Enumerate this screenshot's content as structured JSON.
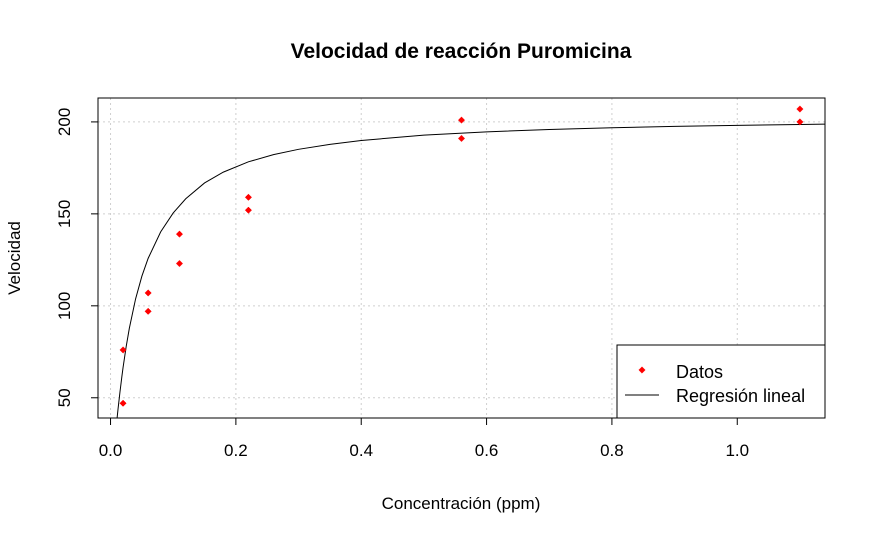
{
  "chart_data": {
    "type": "scatter",
    "title": "Velocidad de reacción Puromicina",
    "xlabel": "Concentración (ppm)",
    "ylabel": "Velocidad",
    "xlim": [
      -0.02,
      1.14
    ],
    "ylim": [
      39,
      213
    ],
    "x_ticks": [
      0.0,
      0.2,
      0.4,
      0.6,
      0.8,
      1.0
    ],
    "x_tick_labels": [
      "0.0",
      "0.2",
      "0.4",
      "0.6",
      "0.8",
      "1.0"
    ],
    "y_ticks": [
      50,
      100,
      150,
      200
    ],
    "y_tick_labels": [
      "50",
      "100",
      "150",
      "200"
    ],
    "grid": true,
    "legend_position": "bottom-right",
    "series": [
      {
        "name": "Datos",
        "kind": "points",
        "color": "#ff0000",
        "x": [
          0.02,
          0.02,
          0.06,
          0.06,
          0.11,
          0.11,
          0.22,
          0.22,
          0.56,
          0.56,
          1.1,
          1.1
        ],
        "y": [
          76,
          47,
          97,
          107,
          123,
          139,
          159,
          152,
          191,
          201,
          207,
          200
        ]
      },
      {
        "name": "Regresión lineal",
        "kind": "line",
        "color": "#000000",
        "x": [
          0.01,
          0.012,
          0.015,
          0.018,
          0.02,
          0.025,
          0.03,
          0.04,
          0.05,
          0.06,
          0.08,
          0.1,
          0.12,
          0.15,
          0.18,
          0.22,
          0.26,
          0.3,
          0.35,
          0.4,
          0.5,
          0.6,
          0.7,
          0.8,
          0.9,
          1.0,
          1.1,
          1.14
        ],
        "y": [
          37.5,
          44.0,
          53.0,
          61.3,
          66.5,
          77.9,
          87.8,
          103.8,
          116.1,
          125.8,
          140.2,
          150.5,
          158.2,
          166.8,
          172.7,
          178.3,
          182.2,
          185.1,
          187.8,
          189.9,
          192.8,
          194.6,
          195.9,
          196.8,
          197.6,
          198.1,
          198.6,
          198.8
        ]
      }
    ]
  }
}
